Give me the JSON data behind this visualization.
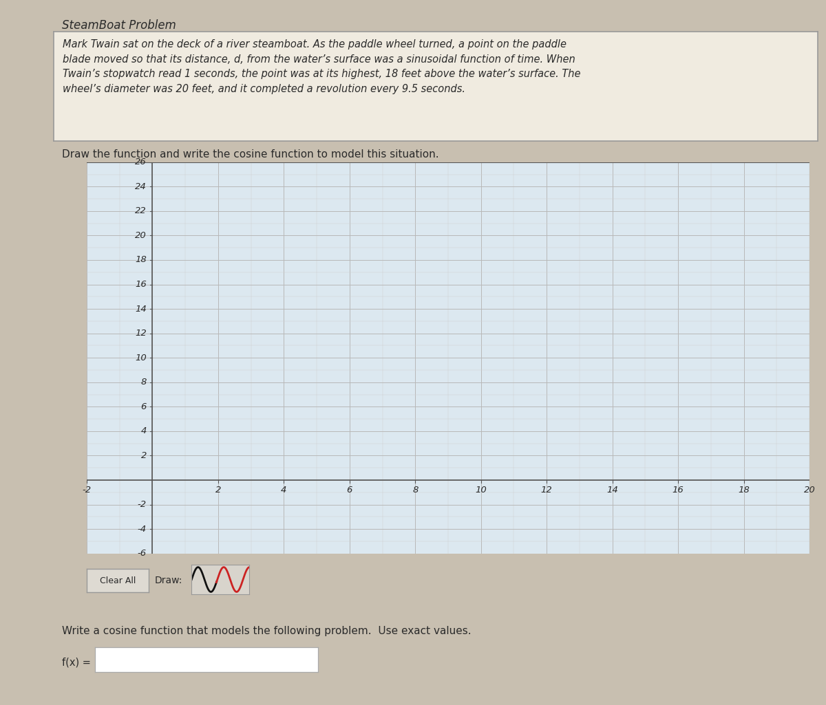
{
  "title": "SteamBoat Problem",
  "problem_text_lines": [
    "Mark Twain sat on the deck of a river steamboat. As the paddle wheel turned, a point on the paddle",
    "blade moved so that its distance, d, from the water’s surface was a sinusoidal function of time. When",
    "Twain’s stopwatch read 1 seconds, the point was at its highest, 18 feet above the water’s surface. The",
    "wheel’s diameter was 20 feet, and it completed a revolution every 9.5 seconds."
  ],
  "draw_instruction": "Draw the function and write the cosine function to model this situation.",
  "xlim": [
    -2,
    20
  ],
  "ylim": [
    -6,
    26
  ],
  "xticks": [
    -2,
    0,
    2,
    4,
    6,
    8,
    10,
    12,
    14,
    16,
    18,
    20
  ],
  "yticks": [
    -6,
    -4,
    -2,
    0,
    2,
    4,
    6,
    8,
    10,
    12,
    14,
    16,
    18,
    20,
    22,
    24,
    26
  ],
  "xtick_labels": [
    "-2",
    "",
    "2",
    "4",
    "6",
    "8",
    "10",
    "12",
    "14",
    "16",
    "18",
    "20"
  ],
  "ytick_labels": [
    "-6",
    "-4",
    "-2",
    "",
    "2",
    "4",
    "6",
    "8",
    "10",
    "12",
    "14",
    "16",
    "18",
    "20",
    "22",
    "24",
    "26"
  ],
  "outer_bg": "#c8bfb0",
  "inner_bg": "#e8e0d0",
  "problem_box_bg": "#f0ebe0",
  "graph_bg": "#dce8f0",
  "grid_color_major": "#b8b8b8",
  "grid_color_minor": "#d0d0d0",
  "axis_color": "#555555",
  "text_color": "#2a2a2a",
  "bottom_instruction": "Write a cosine function that models the following problem.  Use exact values.",
  "fx_label": "f(x) =",
  "font_size_title": 12,
  "font_size_body": 10.5,
  "font_size_axis": 9.5,
  "clear_all_label": "Clear All",
  "draw_label": "Draw:"
}
